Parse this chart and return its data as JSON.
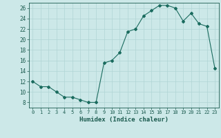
{
  "x": [
    0,
    1,
    2,
    3,
    4,
    5,
    6,
    7,
    8,
    9,
    10,
    11,
    12,
    13,
    14,
    15,
    16,
    17,
    18,
    19,
    20,
    21,
    22,
    23
  ],
  "y": [
    12,
    11,
    11,
    10,
    9,
    9,
    8.5,
    8,
    8,
    15.5,
    16,
    17.5,
    21.5,
    22,
    24.5,
    25.5,
    26.5,
    26.5,
    26,
    23.5,
    25,
    23,
    22.5,
    14.5
  ],
  "xlim": [
    -0.5,
    23.5
  ],
  "ylim": [
    7,
    27
  ],
  "yticks": [
    8,
    10,
    12,
    14,
    16,
    18,
    20,
    22,
    24,
    26
  ],
  "xticks": [
    0,
    1,
    2,
    3,
    4,
    5,
    6,
    7,
    8,
    9,
    10,
    11,
    12,
    13,
    14,
    15,
    16,
    17,
    18,
    19,
    20,
    21,
    22,
    23
  ],
  "xlabel": "Humidex (Indice chaleur)",
  "line_color": "#1a6b5e",
  "marker": "D",
  "marker_size": 2.0,
  "bg_color": "#cce8e8",
  "grid_color": "#b0d4d4",
  "tick_label_color": "#1a5a4e",
  "axis_color": "#1a5a4e",
  "xlabel_color": "#1a5a4e"
}
